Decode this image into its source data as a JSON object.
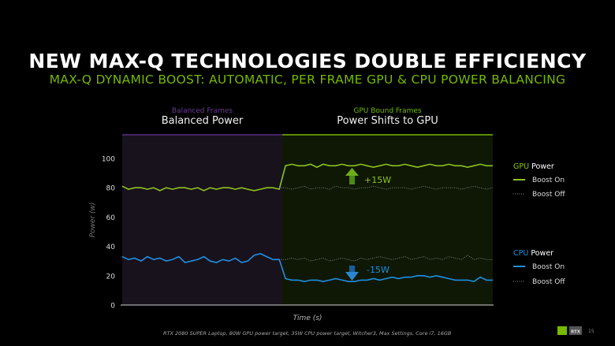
{
  "slide": {
    "title": "NEW MAX-Q TECHNOLOGIES DOUBLE EFFICIENCY",
    "subtitle": "MAX-Q DYNAMIC BOOST: AUTOMATIC, PER FRAME GPU & CPU POWER BALANCING",
    "footer": "RTX 2080 SUPER Laptop, 80W GPU power target, 35W CPU power target, Witcher3, Max Settings, Core i7, 16GB",
    "page_number": "15",
    "logo": "NVIDIA RTX"
  },
  "phases": [
    {
      "label": "Balanced Frames",
      "title": "Balanced Power",
      "color": "#6a3a96"
    },
    {
      "label": "GPU Bound Frames",
      "title": "Power Shifts to GPU",
      "color": "#76b900"
    }
  ],
  "annotations": {
    "gpu_delta": "+15W",
    "cpu_delta": "-15W"
  },
  "legend": {
    "gpu": {
      "prefix": "GPU",
      "suffix": " Power",
      "on": "Boost On",
      "off": "Boost Off"
    },
    "cpu": {
      "prefix": "CPU",
      "suffix": " Power",
      "on": "Boost On",
      "off": "Boost Off"
    }
  },
  "colors": {
    "gpu": "#8fc21e",
    "cpu": "#1f8fe0",
    "off": "#888888",
    "accent": "#76b900"
  },
  "chart_data": {
    "type": "line",
    "xlabel": "Time (s)",
    "ylabel": "Power (w)",
    "ylim": [
      0,
      116
    ],
    "xlim": [
      0,
      59
    ],
    "yticks": [
      "0",
      "20",
      "40",
      "60",
      "80",
      "100"
    ],
    "phase_split_x": 25.5,
    "grid": false,
    "legend_position": "right",
    "series": [
      {
        "name": "GPU Power Boost On",
        "style": "solid",
        "color": "#8fc21e",
        "x_start": 0,
        "values": [
          81,
          79,
          80,
          80,
          79,
          80,
          78,
          80,
          79,
          80,
          80,
          79,
          80,
          78,
          80,
          79,
          80,
          80,
          79,
          80,
          79,
          78,
          79,
          80,
          80,
          79,
          95,
          96,
          95,
          95,
          96,
          94,
          96,
          95,
          95,
          96,
          95,
          95,
          96,
          95,
          94,
          95,
          96,
          95,
          95,
          96,
          95,
          94,
          95,
          96,
          95,
          95,
          96,
          95,
          95,
          94,
          95,
          96,
          95,
          95
        ]
      },
      {
        "name": "GPU Power Boost Off",
        "style": "dotted",
        "color": "#8a8a8a",
        "x_start": 25,
        "values": [
          80,
          80,
          79,
          80,
          81,
          79,
          80,
          80,
          79,
          81,
          80,
          80,
          79,
          80,
          80,
          81,
          80,
          79,
          80,
          80,
          80,
          79,
          80,
          81,
          80,
          79,
          80,
          80,
          80,
          79,
          80,
          81,
          80,
          79,
          80
        ]
      },
      {
        "name": "CPU Power Boost On",
        "style": "solid",
        "color": "#1f8fe0",
        "x_start": 0,
        "values": [
          33,
          31,
          32,
          30,
          33,
          31,
          32,
          30,
          31,
          33,
          29,
          30,
          31,
          33,
          30,
          29,
          31,
          30,
          32,
          29,
          30,
          34,
          35,
          33,
          31,
          31,
          18,
          17,
          17,
          16,
          17,
          17,
          16,
          17,
          18,
          17,
          16,
          16,
          17,
          17,
          18,
          17,
          18,
          19,
          18,
          19,
          19,
          20,
          20,
          19,
          20,
          19,
          18,
          17,
          17,
          17,
          16,
          19,
          17,
          17
        ]
      },
      {
        "name": "CPU Power Boost Off",
        "style": "dotted",
        "color": "#8a8a8a",
        "x_start": 25,
        "values": [
          31,
          31,
          32,
          31,
          32,
          30,
          31,
          32,
          30,
          31,
          32,
          31,
          30,
          32,
          31,
          32,
          33,
          32,
          31,
          32,
          33,
          31,
          32,
          33,
          31,
          32,
          31,
          33,
          32,
          31,
          34,
          31,
          32,
          31,
          31
        ]
      }
    ]
  }
}
